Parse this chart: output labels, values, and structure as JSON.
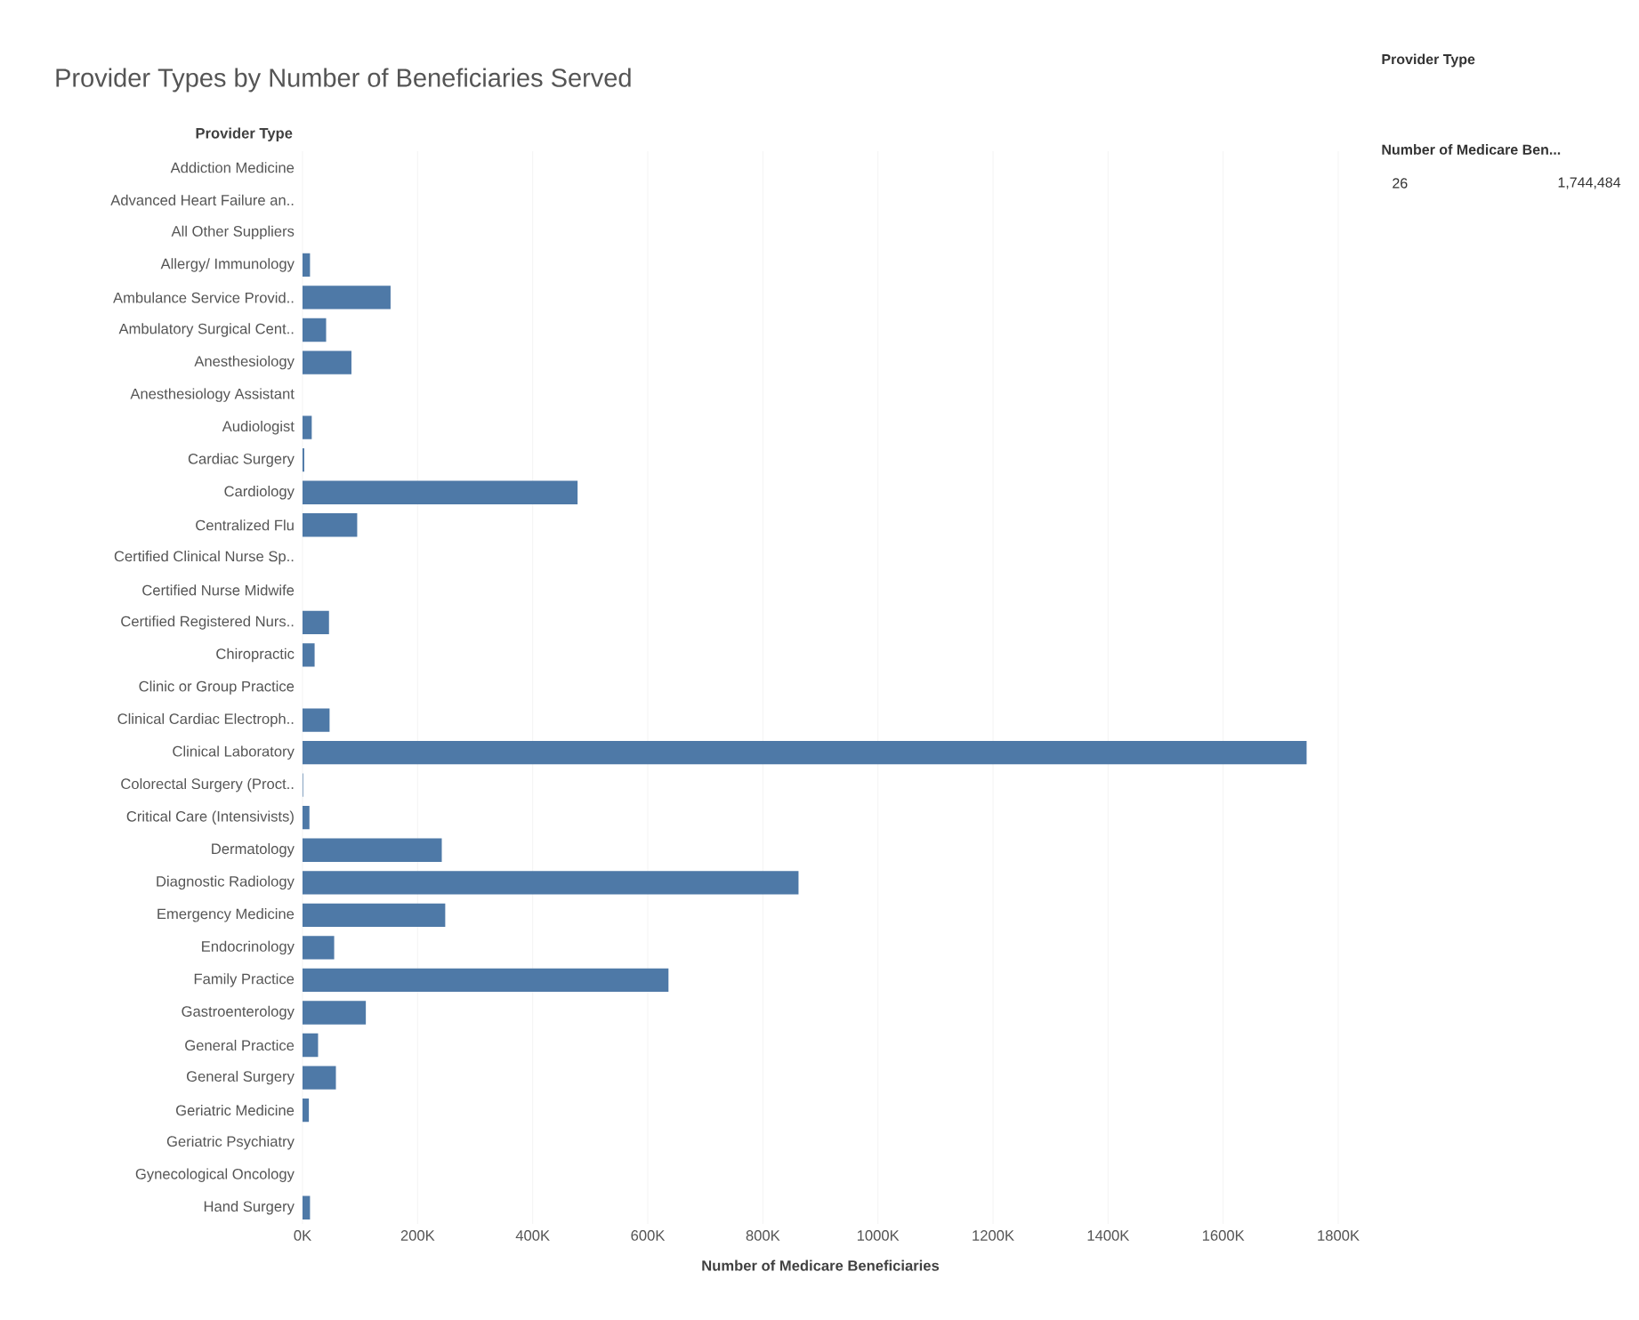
{
  "chart_data": {
    "type": "bar",
    "orientation": "horizontal",
    "title": "Provider Types by Number of Beneficiaries Served",
    "ylabel": "Provider Type",
    "xlabel": "Number of Medicare Beneficiaries",
    "categories": [
      "Addiction Medicine",
      "Advanced Heart Failure an..",
      "All Other Suppliers",
      "Allergy/ Immunology",
      "Ambulance Service Provid..",
      "Ambulatory Surgical Cent..",
      "Anesthesiology",
      "Anesthesiology Assistant",
      "Audiologist",
      "Cardiac Surgery",
      "Cardiology",
      "Centralized Flu",
      "Certified Clinical Nurse Sp..",
      "Certified Nurse Midwife",
      "Certified Registered Nurs..",
      "Chiropractic",
      "Clinic or Group Practice",
      "Clinical Cardiac Electroph..",
      "Clinical Laboratory",
      "Colorectal Surgery (Proct..",
      "Critical Care (Intensivists)",
      "Dermatology",
      "Diagnostic Radiology",
      "Emergency Medicine",
      "Endocrinology",
      "Family Practice",
      "Gastroenterology",
      "General Practice",
      "General Surgery",
      "Geriatric Medicine",
      "Geriatric Psychiatry",
      "Gynecological Oncology",
      "Hand Surgery"
    ],
    "values": [
      0,
      0,
      0,
      13000,
      153000,
      41000,
      85000,
      0,
      16000,
      3000,
      478000,
      95000,
      0,
      0,
      46000,
      21000,
      0,
      47000,
      1745000,
      1000,
      12000,
      242000,
      862000,
      248000,
      55000,
      636000,
      110000,
      27000,
      58000,
      11000,
      0,
      0,
      13000
    ],
    "color": "#4e79a7",
    "xlim": [
      0,
      1800000
    ],
    "xticks": [
      {
        "value": 0,
        "label": "0K"
      },
      {
        "value": 200000,
        "label": "200K"
      },
      {
        "value": 400000,
        "label": "400K"
      },
      {
        "value": 600000,
        "label": "600K"
      },
      {
        "value": 800000,
        "label": "800K"
      },
      {
        "value": 1000000,
        "label": "1000K"
      },
      {
        "value": 1200000,
        "label": "1200K"
      },
      {
        "value": 1400000,
        "label": "1400K"
      },
      {
        "value": 1600000,
        "label": "1600K"
      },
      {
        "value": 1800000,
        "label": "1800K"
      }
    ],
    "grid": "x",
    "annotations": [
      "Provider Type",
      "Number of Medicare Ben...",
      "26",
      "1,744,484"
    ]
  }
}
